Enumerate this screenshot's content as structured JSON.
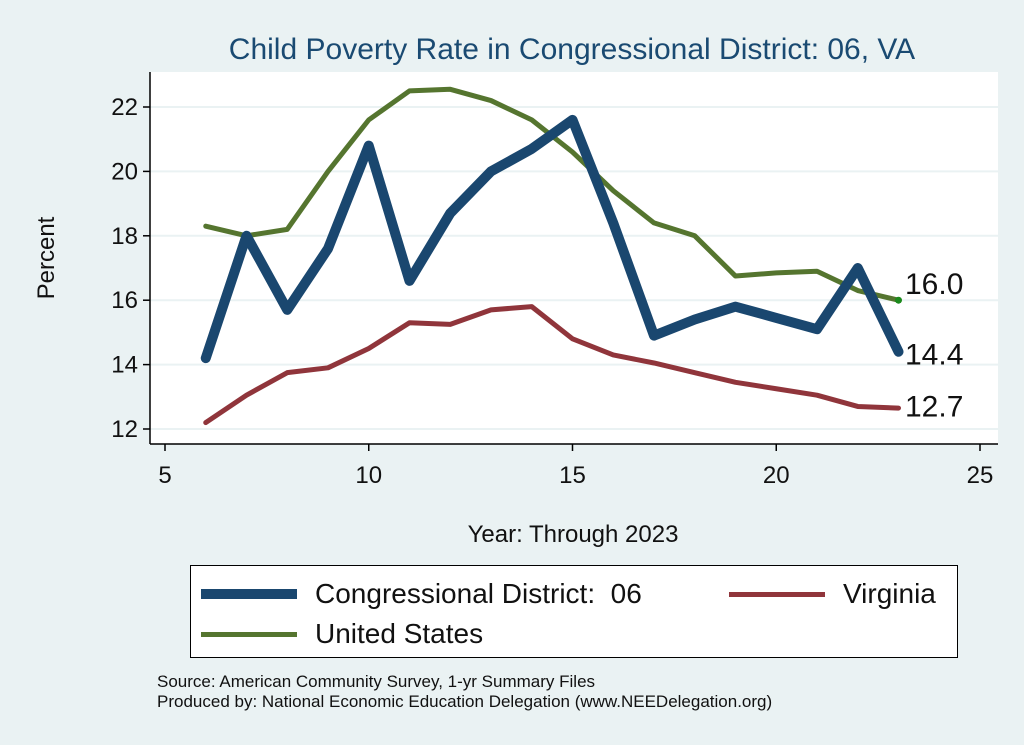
{
  "chart_data": {
    "type": "line",
    "title": "Child Poverty Rate in Congressional District:  06, VA",
    "xlabel": "Year: Through 2023",
    "ylabel": "Percent",
    "xlim": [
      5,
      25
    ],
    "ylim": [
      11.7,
      23
    ],
    "xticks": [
      5,
      10,
      15,
      20,
      25
    ],
    "yticks": [
      12,
      14,
      16,
      18,
      20,
      22
    ],
    "grid": true,
    "legend_position": "bottom",
    "series": [
      {
        "name": "Congressional District:  06",
        "color": "#1a476f",
        "x": [
          6,
          7,
          8,
          9,
          10,
          11,
          12,
          13,
          14,
          15,
          16,
          17,
          18,
          19,
          20,
          21,
          22,
          23
        ],
        "values": [
          14.2,
          18.0,
          15.7,
          17.6,
          20.8,
          16.6,
          18.7,
          20.0,
          20.7,
          21.6,
          18.4,
          14.9,
          15.4,
          15.8,
          15.45,
          15.1,
          17.0,
          14.4
        ]
      },
      {
        "name": "Virginia",
        "color": "#90353b",
        "x": [
          6,
          7,
          8,
          9,
          10,
          11,
          12,
          13,
          14,
          15,
          16,
          17,
          18,
          19,
          20,
          21,
          22,
          23
        ],
        "values": [
          12.2,
          13.05,
          13.75,
          13.9,
          14.5,
          15.3,
          15.25,
          15.7,
          15.8,
          14.8,
          14.3,
          14.05,
          13.75,
          13.45,
          13.25,
          13.05,
          12.7,
          12.65
        ]
      },
      {
        "name": "United States",
        "color": "#55752f",
        "x": [
          6,
          7,
          8,
          9,
          10,
          11,
          12,
          13,
          14,
          15,
          16,
          17,
          18,
          19,
          20,
          21,
          22,
          23
        ],
        "values": [
          18.3,
          18.0,
          18.2,
          20.0,
          21.6,
          22.5,
          22.55,
          22.2,
          21.6,
          20.6,
          19.4,
          18.4,
          18.0,
          16.75,
          16.85,
          16.9,
          16.3,
          16.0
        ]
      }
    ],
    "end_labels": [
      {
        "text": "16.0",
        "value": 16.0
      },
      {
        "text": "14.4",
        "value": 14.4
      },
      {
        "text": "12.7",
        "value": 12.7
      }
    ]
  },
  "source_line_1": "Source: American Community Survey, 1-yr Summary Files",
  "source_line_2": "Produced by: National Economic Education Delegation (www.NEEDelegation.org)"
}
